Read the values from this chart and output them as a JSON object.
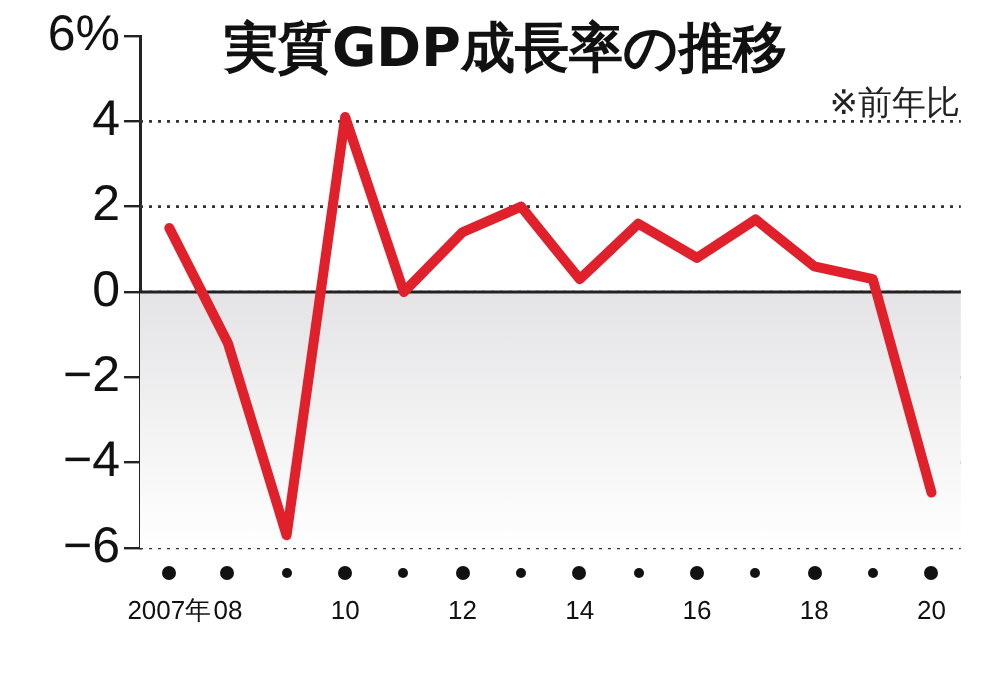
{
  "chart_data": {
    "type": "line",
    "title": "実質GDP成長率の推移",
    "annotations": [
      "※前年比"
    ],
    "categories": [
      "2007年",
      "08",
      null,
      "10",
      null,
      "12",
      null,
      "14",
      null,
      "16",
      null,
      "18",
      null,
      "20"
    ],
    "series": [
      {
        "color": "#e0202a",
        "values": [
          1.5,
          -1.2,
          -5.7,
          4.1,
          0.0,
          1.4,
          2.0,
          0.3,
          1.6,
          0.8,
          1.7,
          0.6,
          0.3,
          -4.7
        ]
      }
    ],
    "ylim": [
      -6,
      6
    ],
    "yticks": [
      {
        "value": -6,
        "label": "−6"
      },
      {
        "value": -4,
        "label": "−4"
      },
      {
        "value": -2,
        "label": "−2"
      },
      0,
      2,
      4,
      {
        "value": 6,
        "label": "6%"
      }
    ],
    "grid": "y",
    "legend": false,
    "marker": "none",
    "line_style": "solid",
    "ref_lines": [
      {
        "axis": "y",
        "value": 0,
        "color": "#222222"
      }
    ],
    "bands": [
      {
        "axis": "y",
        "from": 0,
        "to": -6,
        "color": "#e4e4e6"
      }
    ]
  }
}
